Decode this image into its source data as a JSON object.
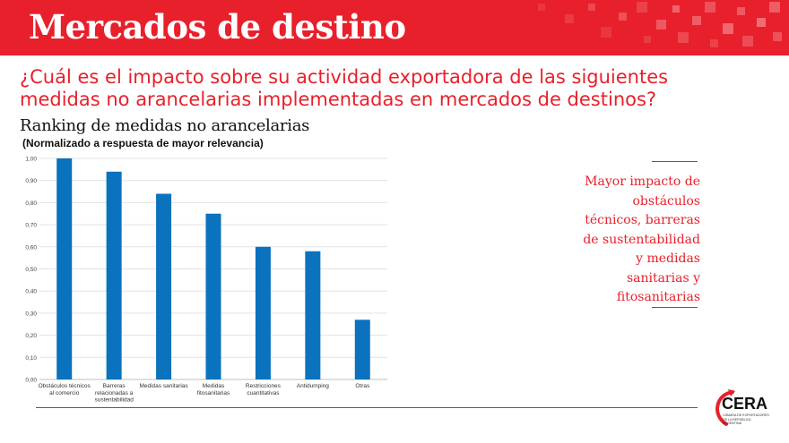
{
  "header": {
    "title": "Mercados de destino"
  },
  "question": "¿Cuál es el impacto sobre su actividad exportadora de las siguientes medidas no arancelarias implementadas en mercados de destinos?",
  "chart_data": {
    "type": "bar",
    "title": "Ranking de medidas no arancelarias",
    "subtitle": "(Normalizado a respuesta de mayor relevancia)",
    "xlabel": "",
    "ylabel": "",
    "ylim": [
      0,
      1
    ],
    "grid": true,
    "bar_color": "#0b72bd",
    "categories": [
      [
        "Obstáculos técnicos",
        "al comercio"
      ],
      [
        "Barreras",
        "relacionadas a",
        "sustentabilidad"
      ],
      [
        "Medidas sanitarias"
      ],
      [
        "Medidas",
        "fitosanitarias"
      ],
      [
        "Restricciones",
        "cuantitativas"
      ],
      [
        "Antidumping"
      ],
      [
        "Otras"
      ]
    ],
    "values": [
      1.0,
      0.94,
      0.84,
      0.75,
      0.6,
      0.58,
      0.27
    ],
    "yticks": [
      "0,00",
      "0,10",
      "0,20",
      "0,30",
      "0,40",
      "0,50",
      "0,60",
      "0,70",
      "0,80",
      "0,90",
      "1,00"
    ]
  },
  "callout": {
    "lines": [
      "Mayor impacto de",
      "obstáculos",
      "técnicos, barreras",
      "de sustentabilidad",
      "y medidas",
      "sanitarias y",
      "fitosanitarias"
    ]
  },
  "logo": {
    "name": "CERA",
    "tagline": "Cámara de Exportadores de la República Argentina"
  },
  "colors": {
    "accent": "#e8202b",
    "bar": "#0b72bd"
  }
}
